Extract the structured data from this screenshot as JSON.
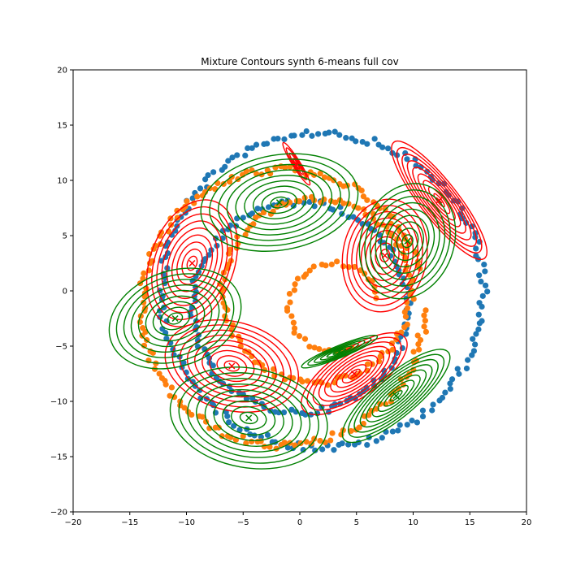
{
  "chart_data": {
    "type": "scatter",
    "title": "Mixture Contours synth 6-means full cov",
    "xlabel": "",
    "ylabel": "",
    "xlim": [
      -20,
      20
    ],
    "ylim": [
      -20,
      20
    ],
    "x_ticks": [
      -20,
      -15,
      -10,
      -5,
      0,
      5,
      10,
      15,
      20
    ],
    "y_ticks": [
      -20,
      -15,
      -10,
      -5,
      0,
      5,
      10,
      15,
      20
    ],
    "grid": false,
    "legend": "none",
    "series": [
      {
        "kind": "scatter",
        "color": "#1f77b4",
        "rings": [
          {
            "cx": 2.0,
            "cy": 0.0,
            "r": 14.2,
            "t0": 15,
            "t1": 375,
            "n": 180,
            "jitter": 0.35
          },
          {
            "cx": 0.0,
            "cy": -1.5,
            "r": 9.5,
            "t0": 15,
            "t1": 375,
            "n": 130,
            "jitter": 0.3
          }
        ]
      },
      {
        "kind": "scatter",
        "color": "#ff7f0e",
        "rings": [
          {
            "cx": -1.5,
            "cy": -1.5,
            "r": 12.5,
            "t0": 15,
            "t1": 360,
            "n": 170,
            "jitter": 0.35
          },
          {
            "cx": 1.5,
            "cy": 0.0,
            "r": 8.3,
            "t0": 0,
            "t1": 360,
            "n": 120,
            "jitter": 0.3
          },
          {
            "cx": 3.0,
            "cy": -1.5,
            "r": 4.0,
            "t0": 10,
            "t1": 300,
            "n": 40,
            "jitter": 0.2
          }
        ]
      }
    ],
    "components": [
      {
        "color": "#ff0000",
        "mean": [
          -0.3,
          11.5
        ],
        "sx": 2.2,
        "sy": 0.35,
        "angle": -58,
        "levels": 4
      },
      {
        "color": "#ff0000",
        "mean": [
          12.3,
          8.2
        ],
        "sx": 6.5,
        "sy": 1.7,
        "angle": -52,
        "levels": 9
      },
      {
        "color": "#ff0000",
        "mean": [
          7.5,
          3.2
        ],
        "sx": 5.0,
        "sy": 3.8,
        "angle": 80,
        "levels": 9
      },
      {
        "color": "#ff0000",
        "mean": [
          -9.5,
          2.5
        ],
        "sx": 5.8,
        "sy": 3.8,
        "angle": 70,
        "levels": 9
      },
      {
        "color": "#ff0000",
        "mean": [
          -6.0,
          -6.8
        ],
        "sx": 6.0,
        "sy": 4.0,
        "angle": -15,
        "levels": 9
      },
      {
        "color": "#ff0000",
        "mean": [
          4.8,
          -7.5
        ],
        "sx": 5.5,
        "sy": 2.2,
        "angle": 35,
        "levels": 9
      },
      {
        "color": "#008000",
        "mean": [
          -1.8,
          8.0
        ],
        "sx": 7.0,
        "sy": 4.3,
        "angle": 10,
        "levels": 9
      },
      {
        "color": "#008000",
        "mean": [
          9.5,
          4.5
        ],
        "sx": 5.2,
        "sy": 4.2,
        "angle": 70,
        "levels": 9
      },
      {
        "color": "#008000",
        "mean": [
          -11.0,
          -2.5
        ],
        "sx": 6.0,
        "sy": 4.3,
        "angle": 20,
        "levels": 9
      },
      {
        "color": "#008000",
        "mean": [
          -4.5,
          -11.5
        ],
        "sx": 7.0,
        "sy": 4.5,
        "angle": -10,
        "levels": 9
      },
      {
        "color": "#008000",
        "mean": [
          3.5,
          -5.5
        ],
        "sx": 3.6,
        "sy": 0.55,
        "angle": 22,
        "levels": 6
      },
      {
        "color": "#008000",
        "mean": [
          8.5,
          -9.5
        ],
        "sx": 6.0,
        "sy": 1.9,
        "angle": 40,
        "levels": 9
      }
    ]
  }
}
